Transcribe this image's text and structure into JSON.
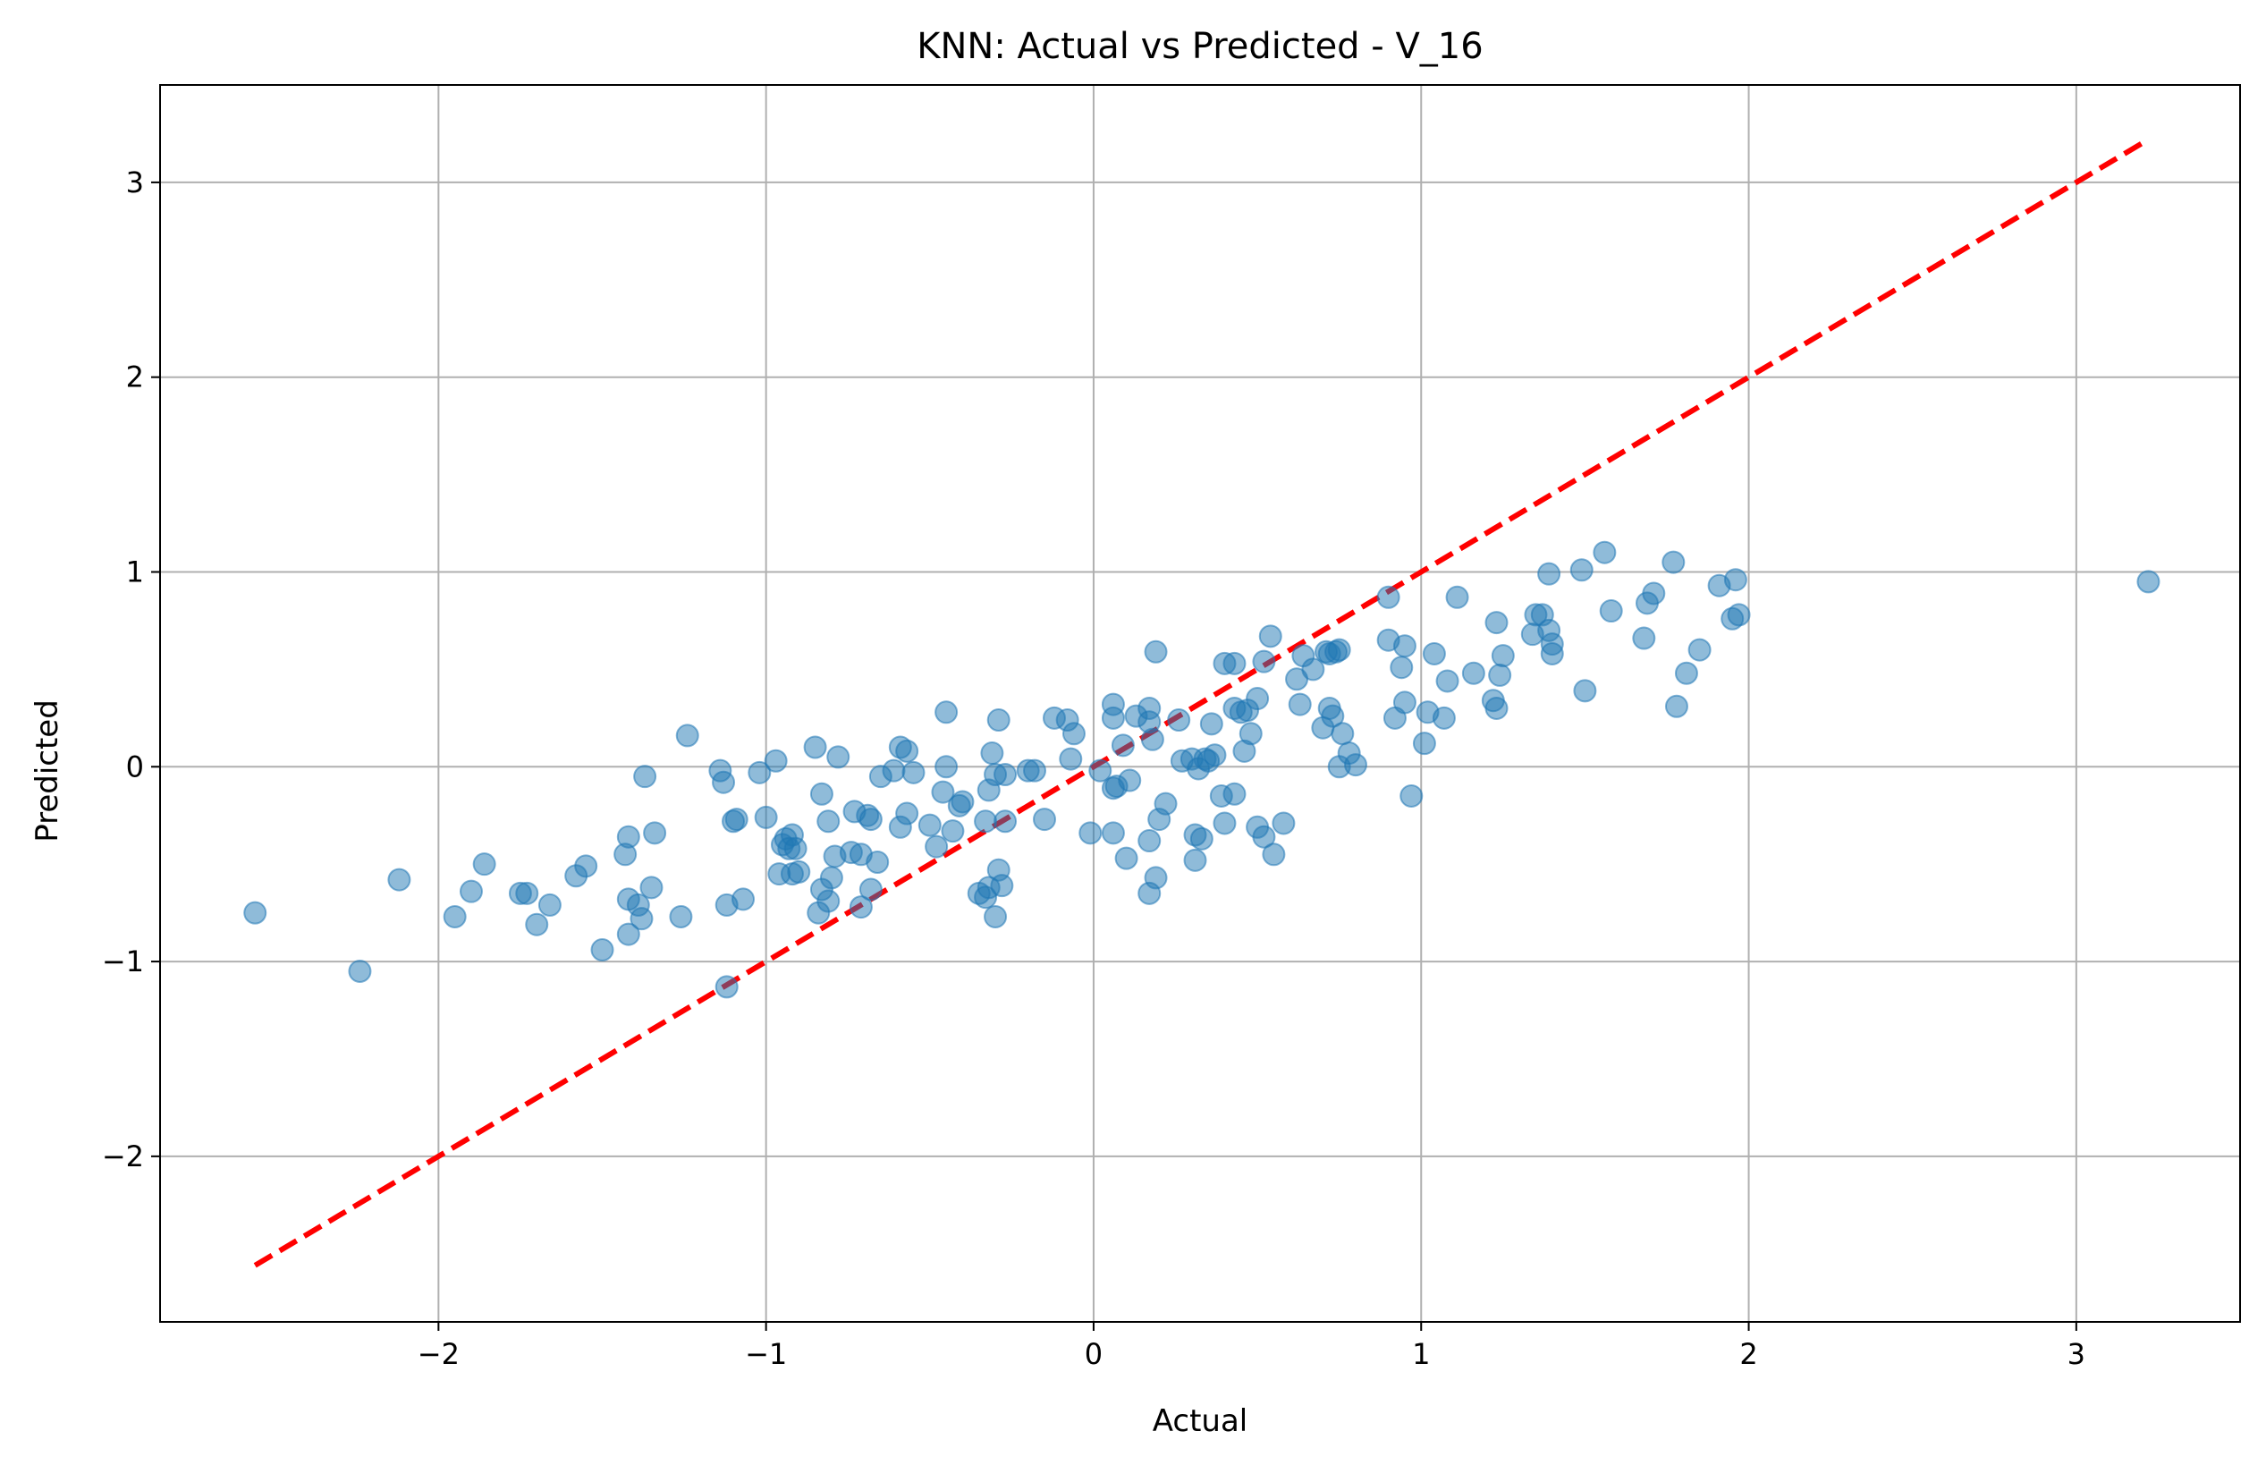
{
  "chart_data": {
    "type": "scatter",
    "title": "KNN: Actual vs Predicted - V_16",
    "xlabel": "Actual",
    "ylabel": "Predicted",
    "xlim": [
      -2.85,
      3.5
    ],
    "ylim": [
      -2.85,
      3.5
    ],
    "x_ticks": [
      -2,
      -1,
      0,
      1,
      2,
      3
    ],
    "y_ticks": [
      -2,
      -1,
      0,
      1,
      2,
      3
    ],
    "x_tick_labels": [
      "−2",
      "−1",
      "0",
      "1",
      "2",
      "3"
    ],
    "y_tick_labels": [
      "−2",
      "−1",
      "0",
      "1",
      "2",
      "3"
    ],
    "grid": true,
    "reference_line": {
      "from": [
        -2.56,
        -2.56
      ],
      "to": [
        3.22,
        3.22
      ],
      "style": "dashed",
      "color": "#ff0000"
    },
    "marker_color": "#1f77b4",
    "marker_alpha": 0.5,
    "points": [
      [
        -2.56,
        -0.75
      ],
      [
        -2.24,
        -1.05
      ],
      [
        -2.12,
        -0.58
      ],
      [
        -1.95,
        -0.77
      ],
      [
        -1.9,
        -0.64
      ],
      [
        -1.86,
        -0.5
      ],
      [
        -1.75,
        -0.65
      ],
      [
        -1.73,
        -0.65
      ],
      [
        -1.7,
        -0.81
      ],
      [
        -1.66,
        -0.71
      ],
      [
        -1.58,
        -0.56
      ],
      [
        -1.55,
        -0.51
      ],
      [
        -1.5,
        -0.94
      ],
      [
        -1.43,
        -0.45
      ],
      [
        -1.42,
        -0.36
      ],
      [
        -1.42,
        -0.86
      ],
      [
        -1.42,
        -0.68
      ],
      [
        -1.39,
        -0.71
      ],
      [
        -1.38,
        -0.78
      ],
      [
        -1.37,
        -0.05
      ],
      [
        -1.35,
        -0.62
      ],
      [
        -1.34,
        -0.34
      ],
      [
        -1.26,
        -0.77
      ],
      [
        -1.24,
        0.16
      ],
      [
        -1.14,
        -0.02
      ],
      [
        -1.13,
        -0.08
      ],
      [
        -1.12,
        -1.13
      ],
      [
        -1.12,
        -0.71
      ],
      [
        -1.1,
        -0.28
      ],
      [
        -1.09,
        -0.27
      ],
      [
        -1.07,
        -0.68
      ],
      [
        -1.02,
        -0.03
      ],
      [
        -1.0,
        -0.26
      ],
      [
        -0.97,
        0.03
      ],
      [
        -0.96,
        -0.55
      ],
      [
        -0.95,
        -0.4
      ],
      [
        -0.94,
        -0.37
      ],
      [
        -0.93,
        -0.42
      ],
      [
        -0.92,
        -0.35
      ],
      [
        -0.92,
        -0.55
      ],
      [
        -0.91,
        -0.42
      ],
      [
        -0.9,
        -0.54
      ],
      [
        -0.85,
        0.1
      ],
      [
        -0.84,
        -0.75
      ],
      [
        -0.83,
        -0.14
      ],
      [
        -0.83,
        -0.63
      ],
      [
        -0.81,
        -0.28
      ],
      [
        -0.81,
        -0.69
      ],
      [
        -0.8,
        -0.57
      ],
      [
        -0.79,
        -0.46
      ],
      [
        -0.78,
        0.05
      ],
      [
        -0.74,
        -0.44
      ],
      [
        -0.73,
        -0.23
      ],
      [
        -0.71,
        -0.45
      ],
      [
        -0.71,
        -0.72
      ],
      [
        -0.69,
        -0.25
      ],
      [
        -0.68,
        -0.63
      ],
      [
        -0.68,
        -0.27
      ],
      [
        -0.66,
        -0.49
      ],
      [
        -0.65,
        -0.05
      ],
      [
        -0.61,
        -0.02
      ],
      [
        -0.59,
        0.1
      ],
      [
        -0.59,
        -0.31
      ],
      [
        -0.57,
        0.08
      ],
      [
        -0.57,
        -0.24
      ],
      [
        -0.55,
        -0.03
      ],
      [
        -0.5,
        -0.3
      ],
      [
        -0.48,
        -0.41
      ],
      [
        -0.46,
        -0.13
      ],
      [
        -0.45,
        0.28
      ],
      [
        -0.45,
        0.0
      ],
      [
        -0.43,
        -0.33
      ],
      [
        -0.41,
        -0.2
      ],
      [
        -0.4,
        -0.18
      ],
      [
        -0.35,
        -0.65
      ],
      [
        -0.33,
        -0.67
      ],
      [
        -0.33,
        -0.28
      ],
      [
        -0.32,
        -0.62
      ],
      [
        -0.32,
        -0.12
      ],
      [
        -0.31,
        0.07
      ],
      [
        -0.3,
        -0.04
      ],
      [
        -0.3,
        -0.77
      ],
      [
        -0.29,
        0.24
      ],
      [
        -0.29,
        -0.53
      ],
      [
        -0.28,
        -0.61
      ],
      [
        -0.27,
        -0.04
      ],
      [
        -0.27,
        -0.28
      ],
      [
        -0.2,
        -0.02
      ],
      [
        -0.18,
        -0.02
      ],
      [
        -0.15,
        -0.27
      ],
      [
        -0.12,
        0.25
      ],
      [
        -0.08,
        0.24
      ],
      [
        -0.07,
        0.04
      ],
      [
        -0.06,
        0.17
      ],
      [
        -0.01,
        -0.34
      ],
      [
        0.02,
        -0.02
      ],
      [
        0.06,
        0.25
      ],
      [
        0.06,
        0.32
      ],
      [
        0.06,
        -0.34
      ],
      [
        0.06,
        -0.11
      ],
      [
        0.07,
        -0.1
      ],
      [
        0.09,
        0.11
      ],
      [
        0.1,
        -0.47
      ],
      [
        0.11,
        -0.07
      ],
      [
        0.13,
        0.26
      ],
      [
        0.17,
        0.3
      ],
      [
        0.17,
        0.23
      ],
      [
        0.17,
        -0.65
      ],
      [
        0.17,
        -0.38
      ],
      [
        0.18,
        0.14
      ],
      [
        0.19,
        0.59
      ],
      [
        0.19,
        -0.57
      ],
      [
        0.2,
        -0.27
      ],
      [
        0.22,
        -0.19
      ],
      [
        0.26,
        0.24
      ],
      [
        0.27,
        0.03
      ],
      [
        0.3,
        0.04
      ],
      [
        0.31,
        -0.35
      ],
      [
        0.31,
        -0.48
      ],
      [
        0.32,
        -0.01
      ],
      [
        0.33,
        -0.37
      ],
      [
        0.34,
        0.04
      ],
      [
        0.35,
        0.03
      ],
      [
        0.36,
        0.22
      ],
      [
        0.37,
        0.06
      ],
      [
        0.39,
        -0.15
      ],
      [
        0.4,
        0.53
      ],
      [
        0.4,
        -0.29
      ],
      [
        0.43,
        -0.14
      ],
      [
        0.43,
        0.53
      ],
      [
        0.43,
        0.3
      ],
      [
        0.45,
        0.28
      ],
      [
        0.46,
        0.08
      ],
      [
        0.47,
        0.29
      ],
      [
        0.48,
        0.17
      ],
      [
        0.5,
        0.35
      ],
      [
        0.5,
        -0.31
      ],
      [
        0.52,
        0.54
      ],
      [
        0.52,
        -0.36
      ],
      [
        0.54,
        0.67
      ],
      [
        0.55,
        -0.45
      ],
      [
        0.58,
        -0.29
      ],
      [
        0.62,
        0.45
      ],
      [
        0.63,
        0.32
      ],
      [
        0.64,
        0.57
      ],
      [
        0.67,
        0.5
      ],
      [
        0.7,
        0.2
      ],
      [
        0.71,
        0.59
      ],
      [
        0.72,
        0.3
      ],
      [
        0.72,
        0.58
      ],
      [
        0.73,
        0.26
      ],
      [
        0.74,
        0.59
      ],
      [
        0.75,
        0.0
      ],
      [
        0.75,
        0.6
      ],
      [
        0.76,
        0.17
      ],
      [
        0.78,
        0.07
      ],
      [
        0.8,
        0.01
      ],
      [
        0.9,
        0.87
      ],
      [
        0.9,
        0.65
      ],
      [
        0.92,
        0.25
      ],
      [
        0.94,
        0.51
      ],
      [
        0.95,
        0.33
      ],
      [
        0.95,
        0.62
      ],
      [
        0.97,
        -0.15
      ],
      [
        1.01,
        0.12
      ],
      [
        1.02,
        0.28
      ],
      [
        1.04,
        0.58
      ],
      [
        1.07,
        0.25
      ],
      [
        1.08,
        0.44
      ],
      [
        1.11,
        0.87
      ],
      [
        1.16,
        0.48
      ],
      [
        1.22,
        0.34
      ],
      [
        1.23,
        0.3
      ],
      [
        1.23,
        0.74
      ],
      [
        1.24,
        0.47
      ],
      [
        1.25,
        0.57
      ],
      [
        1.34,
        0.68
      ],
      [
        1.35,
        0.78
      ],
      [
        1.37,
        0.78
      ],
      [
        1.39,
        0.99
      ],
      [
        1.39,
        0.7
      ],
      [
        1.4,
        0.63
      ],
      [
        1.4,
        0.58
      ],
      [
        1.49,
        1.01
      ],
      [
        1.5,
        0.39
      ],
      [
        1.56,
        1.1
      ],
      [
        1.58,
        0.8
      ],
      [
        1.68,
        0.66
      ],
      [
        1.69,
        0.84
      ],
      [
        1.71,
        0.89
      ],
      [
        1.77,
        1.05
      ],
      [
        1.78,
        0.31
      ],
      [
        1.81,
        0.48
      ],
      [
        1.85,
        0.6
      ],
      [
        1.91,
        0.93
      ],
      [
        1.95,
        0.76
      ],
      [
        1.96,
        0.96
      ],
      [
        1.97,
        0.78
      ],
      [
        3.22,
        0.95
      ]
    ]
  }
}
